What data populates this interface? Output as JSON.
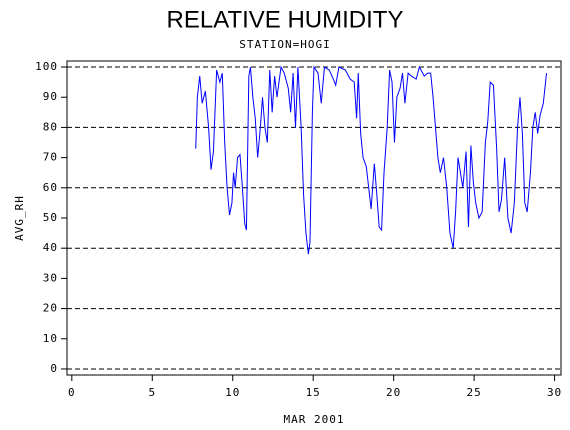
{
  "chart_data": {
    "type": "line",
    "title": "RELATIVE HUMIDITY",
    "subtitle": "STATION=HOGI",
    "x_label": "MAR 2001",
    "y_label": "AVG_RH",
    "xlim": [
      -0.3,
      30.4
    ],
    "ylim": [
      -2,
      102
    ],
    "xticks": [
      0,
      5,
      10,
      15,
      20,
      25,
      30
    ],
    "yticks": [
      0,
      10,
      20,
      30,
      40,
      50,
      60,
      70,
      80,
      90,
      100
    ],
    "grid_yticks": [
      0,
      20,
      40,
      60,
      80,
      100
    ],
    "series": [
      {
        "name": "AVG_RH",
        "color": "#0000ff",
        "x": [
          7.7,
          7.8,
          7.95,
          8.1,
          8.3,
          8.5,
          8.65,
          8.8,
          9.0,
          9.2,
          9.35,
          9.5,
          9.65,
          9.8,
          9.95,
          10.05,
          10.15,
          10.3,
          10.45,
          10.6,
          10.75,
          10.85,
          11.0,
          11.1,
          11.25,
          11.4,
          11.55,
          11.7,
          11.85,
          12.0,
          12.15,
          12.3,
          12.45,
          12.6,
          12.75,
          13.0,
          13.2,
          13.45,
          13.6,
          13.75,
          13.9,
          14.05,
          14.25,
          14.4,
          14.55,
          14.7,
          14.8,
          14.95,
          15.05,
          15.3,
          15.5,
          15.7,
          16.0,
          16.25,
          16.4,
          16.6,
          17.0,
          17.3,
          17.55,
          17.7,
          17.8,
          17.95,
          18.1,
          18.3,
          18.45,
          18.6,
          18.8,
          18.95,
          19.1,
          19.25,
          19.4,
          19.6,
          19.75,
          19.9,
          20.05,
          20.2,
          20.4,
          20.55,
          20.7,
          20.9,
          21.1,
          21.4,
          21.6,
          21.9,
          22.1,
          22.3,
          22.45,
          22.6,
          22.75,
          22.9,
          23.1,
          23.3,
          23.5,
          23.7,
          23.85,
          24.0,
          24.15,
          24.3,
          24.5,
          24.65,
          24.8,
          24.95,
          25.1,
          25.3,
          25.5,
          25.7,
          25.85,
          26.0,
          26.2,
          26.4,
          26.55,
          26.7,
          26.9,
          27.1,
          27.3,
          27.5,
          27.7,
          27.85,
          28.0,
          28.15,
          28.3,
          28.5,
          28.65,
          28.8,
          28.95,
          29.1,
          29.3,
          29.5
        ],
        "values": [
          73,
          90,
          97,
          88,
          92,
          80,
          66,
          72,
          99,
          95,
          98,
          75,
          60,
          51,
          55,
          65,
          60,
          70,
          71,
          60,
          48,
          46,
          97,
          100,
          90,
          83,
          70,
          79,
          90,
          80,
          75,
          99,
          85,
          97,
          90,
          100,
          98,
          93,
          85,
          98,
          80,
          100,
          80,
          58,
          45,
          38,
          42,
          85,
          100,
          98,
          88,
          100,
          99,
          96,
          94,
          100,
          99,
          96,
          95,
          83,
          98,
          78,
          70,
          67,
          60,
          53,
          68,
          58,
          47,
          46,
          65,
          80,
          99,
          95,
          75,
          90,
          93,
          98,
          88,
          98,
          97,
          96,
          100,
          97,
          98,
          98,
          90,
          80,
          70,
          65,
          70,
          60,
          45,
          40,
          52,
          70,
          65,
          60,
          72,
          47,
          74,
          62,
          55,
          50,
          52,
          75,
          82,
          95,
          94,
          73,
          52,
          56,
          70,
          50,
          45,
          55,
          80,
          90,
          78,
          55,
          52,
          65,
          80,
          85,
          78,
          84,
          88,
          98
        ]
      }
    ]
  }
}
